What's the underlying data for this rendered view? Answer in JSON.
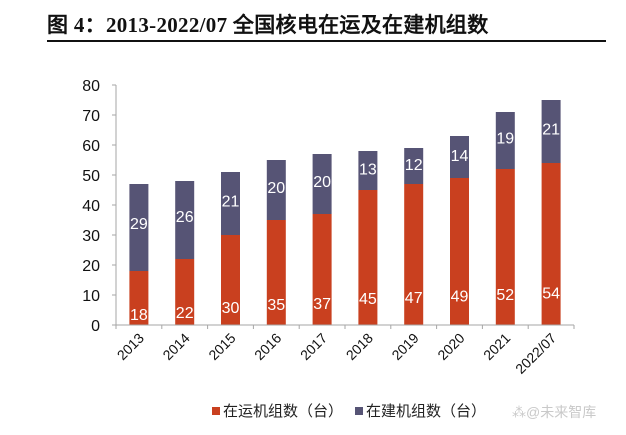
{
  "header": {
    "title": "图 4：2013-2022/07 全国核电在运及在建机组数"
  },
  "watermark": "⁂@未来智库",
  "colors": {
    "operating": "#c9401f",
    "construction": "#565475",
    "axis": "#a6a6a6",
    "label": "#ffffff"
  },
  "chart_data": {
    "type": "bar",
    "stacked": true,
    "title": "2013-2022/07 全国核电在运及在建机组数",
    "xlabel": "",
    "ylabel": "",
    "ylim": [
      0,
      80
    ],
    "yticks": [
      0,
      10,
      20,
      30,
      40,
      50,
      60,
      70,
      80
    ],
    "grid": false,
    "legend_position": "bottom",
    "categories": [
      "2013",
      "2014",
      "2015",
      "2016",
      "2017",
      "2018",
      "2019",
      "2020",
      "2021",
      "2022/07"
    ],
    "series": [
      {
        "name": "在运机组数（台）",
        "color": "#c9401f",
        "values": [
          18,
          22,
          30,
          35,
          37,
          45,
          47,
          49,
          52,
          54
        ]
      },
      {
        "name": "在建机组数（台）",
        "color": "#565475",
        "values": [
          29,
          26,
          21,
          20,
          20,
          13,
          12,
          14,
          19,
          21
        ]
      }
    ]
  }
}
